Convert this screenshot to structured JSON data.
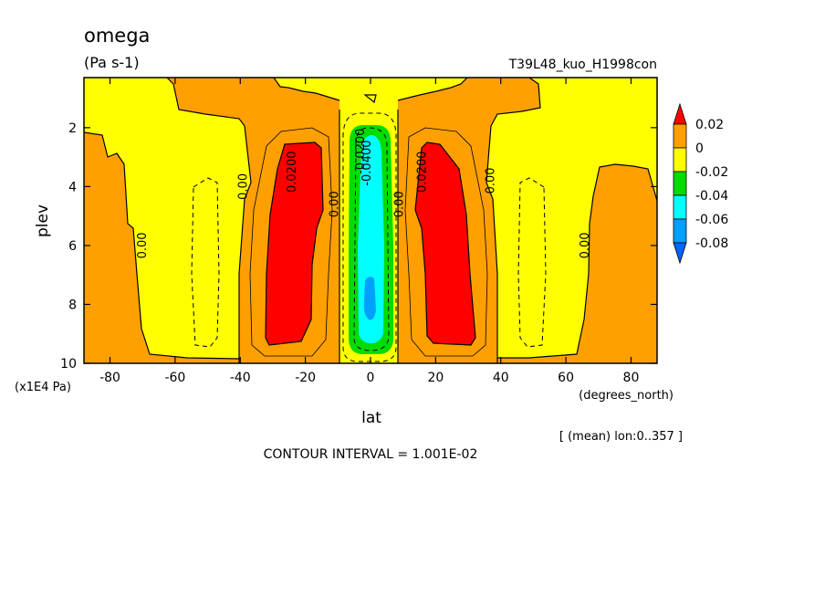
{
  "header": {
    "title": "omega",
    "units": "(Pa s-1)",
    "dataset": "T39L48_kuo_H1998con"
  },
  "footer": {
    "mean_note": "[ (mean) lon:0..357 ]",
    "contour_interval": "CONTOUR INTERVAL = 1.001E-02"
  },
  "chart_data": {
    "type": "heatmap",
    "title": "omega",
    "xlabel": "lat",
    "x_units": "(degrees_north)",
    "ylabel": "plev",
    "y_units": "(x1E4 Pa)",
    "xlim": [
      -88,
      88
    ],
    "ylim": [
      10,
      0.3
    ],
    "y_reversed": true,
    "x_ticks": [
      -80,
      -60,
      -40,
      -20,
      0,
      20,
      40,
      60,
      80
    ],
    "y_ticks": [
      2,
      4,
      6,
      8,
      10
    ],
    "contour_interval": 0.01001,
    "colorbar": {
      "ticks": [
        "0.02",
        "0",
        "-0.02",
        "-0.04",
        "-0.06",
        "-0.08"
      ],
      "bins": [
        {
          "range": "> 0.02",
          "color": "#ff0000"
        },
        {
          "range": "0 to 0.02",
          "color": "#ffa000"
        },
        {
          "range": "-0.02 to 0",
          "color": "#ffff00"
        },
        {
          "range": "-0.04 to -0.02",
          "color": "#00dc00"
        },
        {
          "range": "-0.06 to -0.04",
          "color": "#00ffff"
        },
        {
          "range": "-0.08 to -0.06",
          "color": "#00a0ff"
        },
        {
          "range": "< -0.08",
          "color": "#0064ff"
        }
      ]
    },
    "contour_labels": [
      {
        "text": "0.00",
        "lat": -69,
        "plev": 6.0
      },
      {
        "text": "0.00",
        "lat": -38,
        "plev": 4.0
      },
      {
        "text": "0.0200",
        "lat": -23,
        "plev": 3.5
      },
      {
        "text": "0.00",
        "lat": -10,
        "plev": 4.6
      },
      {
        "text": "-0.0200",
        "lat": -2,
        "plev": 2.8
      },
      {
        "text": "-0.0400",
        "lat": 0,
        "plev": 3.2
      },
      {
        "text": "0.00",
        "lat": 10,
        "plev": 4.6
      },
      {
        "text": "0.0200",
        "lat": 17,
        "plev": 3.5
      },
      {
        "text": "0.00",
        "lat": 38,
        "plev": 3.8
      },
      {
        "text": "0.00",
        "lat": 67,
        "plev": 6.0
      }
    ]
  }
}
